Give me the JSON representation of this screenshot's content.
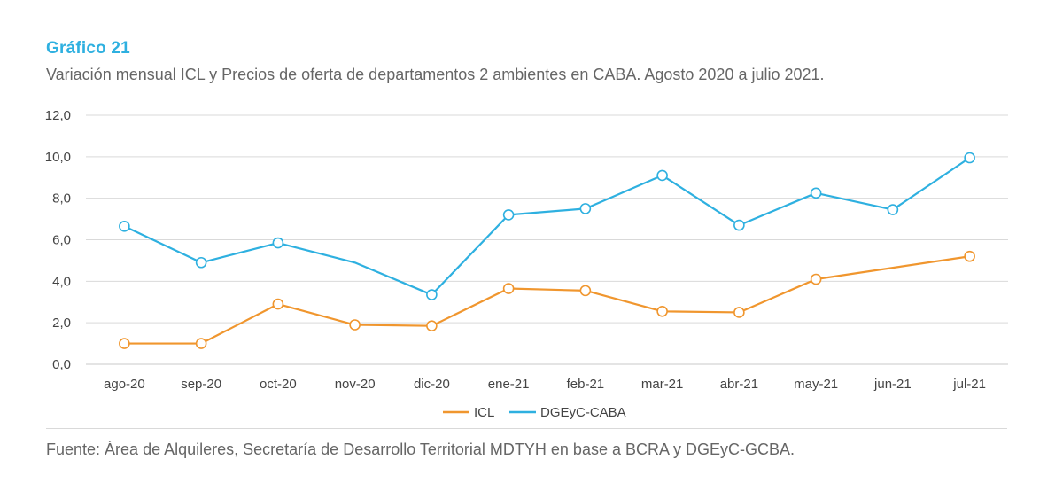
{
  "header": {
    "title": "Gráfico 21",
    "subtitle": "Variación mensual ICL y Precios de oferta de departamentos 2 ambientes en CABA. Agosto 2020 a julio 2021."
  },
  "footer": {
    "source": "Fuente: Área de Alquileres, Secretaría de Desarrollo Territorial MDTYH en base a BCRA y DGEyC-GCBA."
  },
  "chart_data": {
    "type": "line",
    "categories": [
      "ago-20",
      "sep-20",
      "oct-20",
      "nov-20",
      "dic-20",
      "ene-21",
      "feb-21",
      "mar-21",
      "abr-21",
      "may-21",
      "jun-21",
      "jul-21"
    ],
    "ylim": [
      0,
      12
    ],
    "yticks": [
      0,
      2,
      4,
      6,
      8,
      10,
      12
    ],
    "ytick_labels": [
      "0,0",
      "2,0",
      "4,0",
      "6,0",
      "8,0",
      "10,0",
      "12,0"
    ],
    "grid": true,
    "legend_position": "bottom",
    "series": [
      {
        "name": "ICL",
        "color": "#f0962e",
        "values": [
          1.0,
          1.0,
          2.9,
          1.9,
          1.85,
          3.65,
          3.55,
          2.55,
          2.5,
          4.1,
          4.65,
          5.2
        ],
        "markers": [
          true,
          true,
          true,
          true,
          true,
          true,
          true,
          true,
          true,
          true,
          false,
          true
        ]
      },
      {
        "name": "DGEyC-CABA",
        "color": "#2eb0e0",
        "values": [
          6.65,
          4.9,
          5.85,
          4.9,
          3.35,
          7.2,
          7.5,
          9.1,
          6.7,
          8.25,
          7.45,
          9.95
        ],
        "markers": [
          true,
          true,
          true,
          false,
          true,
          true,
          true,
          true,
          true,
          true,
          true,
          true
        ]
      }
    ]
  }
}
